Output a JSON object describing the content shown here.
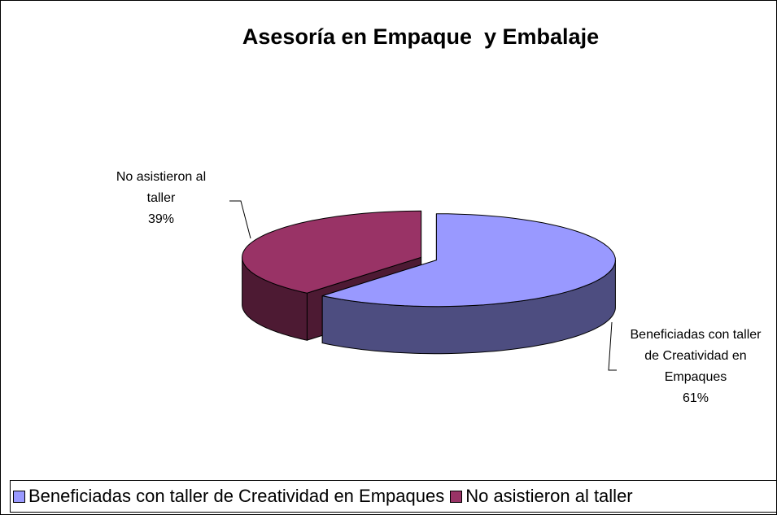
{
  "chart_data": {
    "type": "pie",
    "title": "Asesoría en Empaque  y Embalaje",
    "categories": [
      "Beneficiadas con taller de Creatividad en Empaques",
      "No asistieron al taller"
    ],
    "values": [
      61,
      39
    ],
    "value_labels": [
      "61%",
      "39%"
    ],
    "colors": [
      "#9999ff",
      "#993366"
    ],
    "side_colors": [
      "#4d4d80",
      "#4d1a33"
    ],
    "legend": "bottom"
  }
}
